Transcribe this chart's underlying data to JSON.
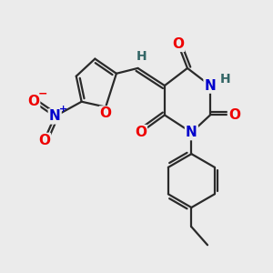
{
  "bg_color": "#ebebeb",
  "bond_color": "#2a2a2a",
  "bond_width": 1.6,
  "atom_colors": {
    "O": "#ee0000",
    "N": "#0000cc",
    "H": "#336666",
    "C": "#2a2a2a"
  }
}
